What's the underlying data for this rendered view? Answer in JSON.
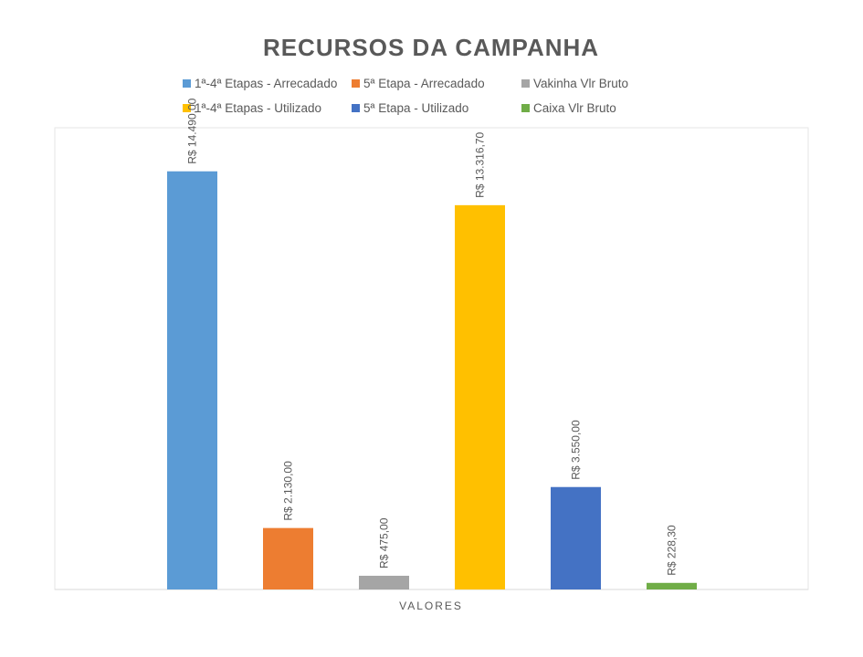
{
  "chart_data": {
    "type": "bar",
    "title": "RECURSOS DA CAMPANHA",
    "xlabel": "VALORES",
    "ylabel": "",
    "categories": [
      "VALORES"
    ],
    "ylim": [
      0,
      16000
    ],
    "grid": false,
    "legend_position": "top",
    "series": [
      {
        "name": "1ª-4ª Etapas - Arrecadado",
        "values": [
          14490.0
        ],
        "label": "R$ 14.490,00",
        "color": "#5B9BD5"
      },
      {
        "name": "5ª Etapa - Arrecadado",
        "values": [
          2130.0
        ],
        "label": "R$ 2.130,00",
        "color": "#ED7D31"
      },
      {
        "name": "Vakinha Vlr Bruto",
        "values": [
          475.0
        ],
        "label": "R$ 475,00",
        "color": "#A5A5A5"
      },
      {
        "name": "1ª-4ª Etapas - Utilizado",
        "values": [
          13316.7
        ],
        "label": "R$ 13.316,70",
        "color": "#FFC000"
      },
      {
        "name": "5ª Etapa - Utilizado",
        "values": [
          3550.0
        ],
        "label": "R$ 3.550,00",
        "color": "#4472C4"
      },
      {
        "name": "Caixa Vlr Bruto",
        "values": [
          228.3
        ],
        "label": "R$ 228,30",
        "color": "#70AD47"
      }
    ]
  }
}
